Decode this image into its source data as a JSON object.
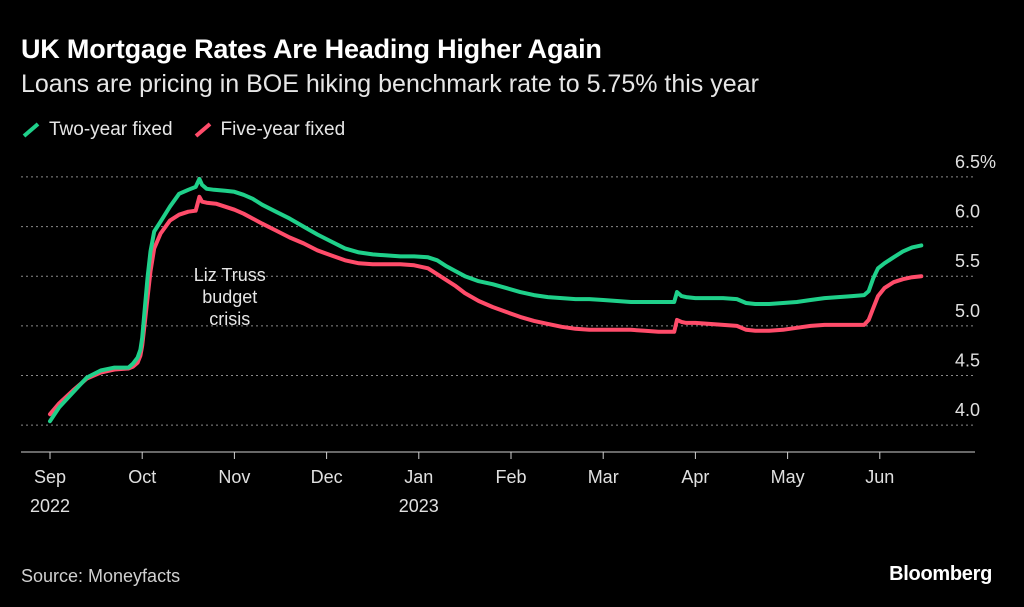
{
  "header": {
    "title": "UK Mortgage Rates Are Heading Higher Again",
    "subtitle": "Loans are pricing in BOE hiking benchmark rate to 5.75% this year"
  },
  "footer": {
    "source": "Source: Moneyfacts",
    "brand": "Bloomberg"
  },
  "colors": {
    "background": "#000000",
    "two_year": "#1fd08a",
    "five_year": "#ff4c6a",
    "grid": "#8a8a8a"
  },
  "chart_data": {
    "type": "line",
    "title": "UK Mortgage Rates Are Heading Higher Again",
    "subtitle": "Loans are pricing in BOE hiking benchmark rate to 5.75% this year",
    "xlabel": "",
    "ylabel": "",
    "x_unit": "months since 1 Sep 2022",
    "xlim": [
      0,
      9.6
    ],
    "ylim": [
      3.8,
      6.6
    ],
    "grid": true,
    "legend_position": "top-left",
    "y_ticks": [
      {
        "value": 4.0,
        "label": "4.0"
      },
      {
        "value": 4.5,
        "label": "4.5"
      },
      {
        "value": 5.0,
        "label": "5.0"
      },
      {
        "value": 5.5,
        "label": "5.5"
      },
      {
        "value": 6.0,
        "label": "6.0"
      },
      {
        "value": 6.5,
        "label": "6.5%"
      }
    ],
    "x_ticks": [
      {
        "value": 0,
        "label": "Sep",
        "year": "2022"
      },
      {
        "value": 1,
        "label": "Oct",
        "year": ""
      },
      {
        "value": 2,
        "label": "Nov",
        "year": ""
      },
      {
        "value": 3,
        "label": "Dec",
        "year": ""
      },
      {
        "value": 4,
        "label": "Jan",
        "year": "2023"
      },
      {
        "value": 5,
        "label": "Feb",
        "year": ""
      },
      {
        "value": 6,
        "label": "Mar",
        "year": ""
      },
      {
        "value": 7,
        "label": "Apr",
        "year": ""
      },
      {
        "value": 8,
        "label": "May",
        "year": ""
      },
      {
        "value": 9,
        "label": "Jun",
        "year": ""
      }
    ],
    "annotation": {
      "lines": [
        "Liz Truss",
        "budget",
        "crisis"
      ],
      "x": 1.95,
      "y": 5.15
    },
    "series": [
      {
        "name": "Two-year fixed",
        "color": "#1fd08a",
        "points": [
          [
            0.0,
            4.04
          ],
          [
            0.1,
            4.18
          ],
          [
            0.25,
            4.33
          ],
          [
            0.4,
            4.48
          ],
          [
            0.55,
            4.55
          ],
          [
            0.7,
            4.58
          ],
          [
            0.85,
            4.58
          ],
          [
            0.9,
            4.62
          ],
          [
            0.95,
            4.68
          ],
          [
            0.98,
            4.76
          ],
          [
            1.0,
            4.88
          ],
          [
            1.03,
            5.2
          ],
          [
            1.06,
            5.5
          ],
          [
            1.09,
            5.75
          ],
          [
            1.13,
            5.95
          ],
          [
            1.2,
            6.05
          ],
          [
            1.3,
            6.2
          ],
          [
            1.4,
            6.33
          ],
          [
            1.5,
            6.37
          ],
          [
            1.58,
            6.4
          ],
          [
            1.62,
            6.48
          ],
          [
            1.65,
            6.42
          ],
          [
            1.7,
            6.38
          ],
          [
            1.78,
            6.37
          ],
          [
            1.9,
            6.36
          ],
          [
            2.0,
            6.35
          ],
          [
            2.1,
            6.32
          ],
          [
            2.2,
            6.28
          ],
          [
            2.3,
            6.22
          ],
          [
            2.45,
            6.15
          ],
          [
            2.6,
            6.08
          ],
          [
            2.75,
            6.0
          ],
          [
            2.9,
            5.92
          ],
          [
            3.05,
            5.85
          ],
          [
            3.2,
            5.78
          ],
          [
            3.35,
            5.74
          ],
          [
            3.5,
            5.72
          ],
          [
            3.65,
            5.71
          ],
          [
            3.8,
            5.7
          ],
          [
            3.95,
            5.7
          ],
          [
            4.1,
            5.69
          ],
          [
            4.2,
            5.66
          ],
          [
            4.3,
            5.6
          ],
          [
            4.4,
            5.55
          ],
          [
            4.5,
            5.5
          ],
          [
            4.65,
            5.45
          ],
          [
            4.8,
            5.42
          ],
          [
            4.95,
            5.38
          ],
          [
            5.1,
            5.34
          ],
          [
            5.25,
            5.31
          ],
          [
            5.4,
            5.29
          ],
          [
            5.55,
            5.28
          ],
          [
            5.7,
            5.27
          ],
          [
            5.85,
            5.27
          ],
          [
            6.0,
            5.26
          ],
          [
            6.15,
            5.25
          ],
          [
            6.3,
            5.24
          ],
          [
            6.45,
            5.24
          ],
          [
            6.6,
            5.24
          ],
          [
            6.7,
            5.24
          ],
          [
            6.77,
            5.24
          ],
          [
            6.8,
            5.34
          ],
          [
            6.85,
            5.3
          ],
          [
            6.9,
            5.29
          ],
          [
            7.0,
            5.28
          ],
          [
            7.15,
            5.28
          ],
          [
            7.3,
            5.28
          ],
          [
            7.45,
            5.27
          ],
          [
            7.55,
            5.23
          ],
          [
            7.65,
            5.22
          ],
          [
            7.8,
            5.22
          ],
          [
            7.95,
            5.23
          ],
          [
            8.1,
            5.24
          ],
          [
            8.25,
            5.26
          ],
          [
            8.4,
            5.28
          ],
          [
            8.55,
            5.29
          ],
          [
            8.7,
            5.3
          ],
          [
            8.83,
            5.31
          ],
          [
            8.88,
            5.35
          ],
          [
            8.93,
            5.48
          ],
          [
            8.98,
            5.58
          ],
          [
            9.05,
            5.63
          ],
          [
            9.15,
            5.69
          ],
          [
            9.25,
            5.75
          ],
          [
            9.35,
            5.79
          ],
          [
            9.45,
            5.81
          ]
        ]
      },
      {
        "name": "Five-year fixed",
        "color": "#ff4c6a",
        "points": [
          [
            0.0,
            4.11
          ],
          [
            0.1,
            4.22
          ],
          [
            0.25,
            4.35
          ],
          [
            0.4,
            4.47
          ],
          [
            0.55,
            4.53
          ],
          [
            0.7,
            4.56
          ],
          [
            0.85,
            4.57
          ],
          [
            0.9,
            4.59
          ],
          [
            0.95,
            4.63
          ],
          [
            0.98,
            4.7
          ],
          [
            1.0,
            4.8
          ],
          [
            1.03,
            5.05
          ],
          [
            1.06,
            5.3
          ],
          [
            1.09,
            5.55
          ],
          [
            1.13,
            5.78
          ],
          [
            1.2,
            5.93
          ],
          [
            1.3,
            6.06
          ],
          [
            1.4,
            6.12
          ],
          [
            1.5,
            6.15
          ],
          [
            1.58,
            6.16
          ],
          [
            1.62,
            6.3
          ],
          [
            1.65,
            6.25
          ],
          [
            1.7,
            6.24
          ],
          [
            1.8,
            6.23
          ],
          [
            1.9,
            6.2
          ],
          [
            2.0,
            6.17
          ],
          [
            2.1,
            6.13
          ],
          [
            2.2,
            6.08
          ],
          [
            2.3,
            6.03
          ],
          [
            2.45,
            5.96
          ],
          [
            2.6,
            5.89
          ],
          [
            2.75,
            5.83
          ],
          [
            2.9,
            5.76
          ],
          [
            3.05,
            5.71
          ],
          [
            3.2,
            5.66
          ],
          [
            3.35,
            5.63
          ],
          [
            3.5,
            5.62
          ],
          [
            3.65,
            5.62
          ],
          [
            3.8,
            5.62
          ],
          [
            3.95,
            5.61
          ],
          [
            4.1,
            5.58
          ],
          [
            4.2,
            5.52
          ],
          [
            4.3,
            5.46
          ],
          [
            4.4,
            5.4
          ],
          [
            4.5,
            5.33
          ],
          [
            4.65,
            5.25
          ],
          [
            4.8,
            5.19
          ],
          [
            4.95,
            5.14
          ],
          [
            5.1,
            5.09
          ],
          [
            5.25,
            5.05
          ],
          [
            5.4,
            5.02
          ],
          [
            5.55,
            4.99
          ],
          [
            5.7,
            4.97
          ],
          [
            5.85,
            4.96
          ],
          [
            6.0,
            4.96
          ],
          [
            6.15,
            4.96
          ],
          [
            6.3,
            4.96
          ],
          [
            6.45,
            4.95
          ],
          [
            6.6,
            4.94
          ],
          [
            6.7,
            4.94
          ],
          [
            6.77,
            4.94
          ],
          [
            6.8,
            5.06
          ],
          [
            6.85,
            5.04
          ],
          [
            6.9,
            5.03
          ],
          [
            7.0,
            5.03
          ],
          [
            7.15,
            5.02
          ],
          [
            7.3,
            5.01
          ],
          [
            7.45,
            5.0
          ],
          [
            7.55,
            4.96
          ],
          [
            7.65,
            4.95
          ],
          [
            7.8,
            4.95
          ],
          [
            7.95,
            4.96
          ],
          [
            8.1,
            4.98
          ],
          [
            8.25,
            5.0
          ],
          [
            8.4,
            5.01
          ],
          [
            8.55,
            5.01
          ],
          [
            8.7,
            5.01
          ],
          [
            8.83,
            5.01
          ],
          [
            8.88,
            5.06
          ],
          [
            8.93,
            5.18
          ],
          [
            8.98,
            5.3
          ],
          [
            9.05,
            5.38
          ],
          [
            9.15,
            5.44
          ],
          [
            9.25,
            5.47
          ],
          [
            9.35,
            5.49
          ],
          [
            9.45,
            5.5
          ]
        ]
      }
    ]
  }
}
